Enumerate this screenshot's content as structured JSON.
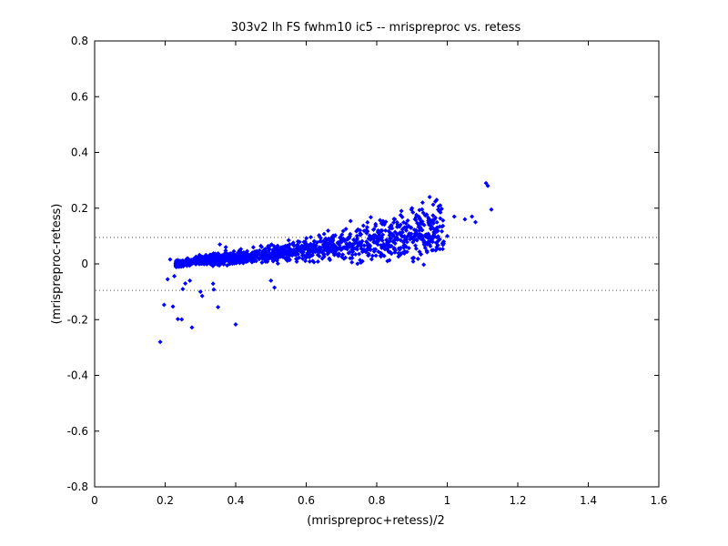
{
  "chart_data": {
    "type": "scatter",
    "title": "303v2 lh FS fwhm10 ic5 -- mrispreproc vs. retess",
    "xlabel": "(mrispreproc+retess)/2",
    "ylabel": "(mrispreproc-retess)",
    "xlim": [
      0,
      1.6
    ],
    "ylim": [
      -0.8,
      0.8
    ],
    "xticks": [
      "0",
      "0.2",
      "0.4",
      "0.6",
      "0.8",
      "1",
      "1.2",
      "1.4",
      "1.6"
    ],
    "yticks": [
      "-0.8",
      "-0.6",
      "-0.4",
      "-0.2",
      "0",
      "0.2",
      "0.4",
      "0.6",
      "0.8"
    ],
    "grid": false,
    "marker_color": "#0000ff",
    "reference_lines": [
      {
        "y": 0.095,
        "style": "dotted",
        "color": "#ff0000"
      },
      {
        "y": -0.095,
        "style": "dotted",
        "color": "#ff0000"
      }
    ],
    "points": [
      [
        0.186,
        -0.28
      ],
      [
        0.197,
        -0.147
      ],
      [
        0.207,
        -0.055
      ],
      [
        0.214,
        0.016
      ],
      [
        0.222,
        -0.153
      ],
      [
        0.226,
        -0.044
      ],
      [
        0.236,
        -0.198
      ],
      [
        0.24,
        -0.01
      ],
      [
        0.247,
        -0.199
      ],
      [
        0.25,
        -0.09
      ],
      [
        0.257,
        -0.07
      ],
      [
        0.27,
        -0.06
      ],
      [
        0.276,
        -0.228
      ],
      [
        0.3,
        -0.1
      ],
      [
        0.305,
        -0.115
      ],
      [
        0.336,
        -0.071
      ],
      [
        0.338,
        -0.092
      ],
      [
        0.35,
        -0.155
      ],
      [
        0.4,
        -0.217
      ],
      [
        0.51,
        -0.085
      ],
      [
        0.5,
        -0.06
      ],
      [
        0.355,
        0.07
      ],
      [
        0.372,
        0.06
      ],
      [
        0.85,
        0.16
      ],
      [
        0.87,
        0.19
      ],
      [
        0.9,
        0.2
      ],
      [
        0.93,
        0.22
      ],
      [
        0.95,
        0.24
      ],
      [
        0.97,
        0.23
      ],
      [
        0.98,
        0.21
      ],
      [
        1.02,
        0.17
      ],
      [
        1.05,
        0.16
      ],
      [
        1.07,
        0.17
      ],
      [
        1.08,
        0.15
      ],
      [
        1.11,
        0.29
      ],
      [
        1.115,
        0.28
      ],
      [
        1.125,
        0.195
      ],
      [
        0.95,
        0.07
      ],
      [
        0.97,
        0.06
      ],
      [
        0.99,
        0.08
      ],
      [
        1.0,
        0.1
      ],
      [
        0.96,
        0.05
      ]
    ],
    "band": {
      "x_start": 0.23,
      "x_end": 0.99,
      "count": 1400,
      "trend": [
        [
          0.23,
          0.0
        ],
        [
          0.3,
          0.012
        ],
        [
          0.4,
          0.022
        ],
        [
          0.5,
          0.035
        ],
        [
          0.6,
          0.05
        ],
        [
          0.7,
          0.068
        ],
        [
          0.8,
          0.09
        ],
        [
          0.9,
          0.11
        ],
        [
          1.0,
          0.12
        ]
      ],
      "spread": [
        [
          0.23,
          0.006
        ],
        [
          0.3,
          0.01
        ],
        [
          0.4,
          0.013
        ],
        [
          0.5,
          0.018
        ],
        [
          0.6,
          0.025
        ],
        [
          0.7,
          0.033
        ],
        [
          0.8,
          0.045
        ],
        [
          0.9,
          0.055
        ],
        [
          1.0,
          0.06
        ]
      ]
    }
  }
}
